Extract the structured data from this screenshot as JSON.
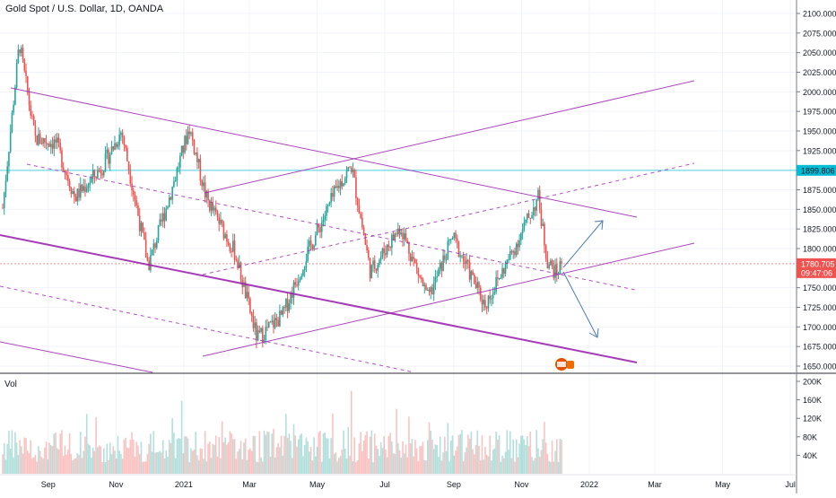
{
  "header": {
    "title": "Gold Spot / U.S. Dollar, 1D, OANDA"
  },
  "volume_pane": {
    "label": "Vol"
  },
  "colors": {
    "up": "#26a69a",
    "down": "#ef5350",
    "trend": "#9c27b0",
    "arrow": "#4a7ab5",
    "hline": "#00bcd4",
    "price_badge": "#ef5350"
  },
  "chart_data": [
    {
      "type": "candlestick",
      "title": "Gold Spot / U.S. Dollar, 1D, OANDA",
      "x_ticks": [
        "Sep",
        "Nov",
        "2021",
        "Mar",
        "May",
        "Jul",
        "Sep",
        "Nov",
        "2022",
        "Mar",
        "May",
        "Jul"
      ],
      "y_ticks": [
        "2100.000",
        "2075.000",
        "2050.000",
        "2025.000",
        "2000.000",
        "1975.000",
        "1950.000",
        "1925.000",
        "1875.000",
        "1850.000",
        "1825.000",
        "1800.000",
        "1750.000",
        "1725.000",
        "1700.000",
        "1675.000",
        "1650.000"
      ],
      "ylim": [
        1642,
        2108
      ],
      "price_labels": [
        {
          "value": 1899.806,
          "text": "1899.806",
          "color": "#00bcd4"
        },
        {
          "value": 1780.705,
          "text": "1780.705",
          "color": "#ef5350"
        }
      ],
      "countdown": "09:47:06",
      "closes": [
        {
          "date": "2020-07-22",
          "close": 1852
        },
        {
          "date": "2020-08-06",
          "close": 2062
        },
        {
          "date": "2020-08-20",
          "close": 1940
        },
        {
          "date": "2020-09-08",
          "close": 1935
        },
        {
          "date": "2020-09-25",
          "close": 1865
        },
        {
          "date": "2020-10-20",
          "close": 1905
        },
        {
          "date": "2020-11-06",
          "close": 1950
        },
        {
          "date": "2020-11-30",
          "close": 1778
        },
        {
          "date": "2020-12-21",
          "close": 1875
        },
        {
          "date": "2021-01-06",
          "close": 1955
        },
        {
          "date": "2021-01-21",
          "close": 1865
        },
        {
          "date": "2021-02-16",
          "close": 1795
        },
        {
          "date": "2021-03-08",
          "close": 1685
        },
        {
          "date": "2021-03-31",
          "close": 1715
        },
        {
          "date": "2021-04-21",
          "close": 1790
        },
        {
          "date": "2021-05-20",
          "close": 1880
        },
        {
          "date": "2021-06-01",
          "close": 1905
        },
        {
          "date": "2021-06-18",
          "close": 1770
        },
        {
          "date": "2021-07-15",
          "close": 1828
        },
        {
          "date": "2021-08-09",
          "close": 1735
        },
        {
          "date": "2021-08-31",
          "close": 1815
        },
        {
          "date": "2021-09-29",
          "close": 1728
        },
        {
          "date": "2021-10-22",
          "close": 1790
        },
        {
          "date": "2021-11-16",
          "close": 1865
        },
        {
          "date": "2021-11-24",
          "close": 1785
        },
        {
          "date": "2021-12-02",
          "close": 1768
        },
        {
          "date": "2021-12-07",
          "close": 1781
        }
      ]
    },
    {
      "type": "bar",
      "title": "Vol",
      "y_ticks": [
        "200K",
        "160K",
        "120K",
        "80K",
        "40K"
      ],
      "ylim": [
        0,
        200000
      ]
    }
  ]
}
